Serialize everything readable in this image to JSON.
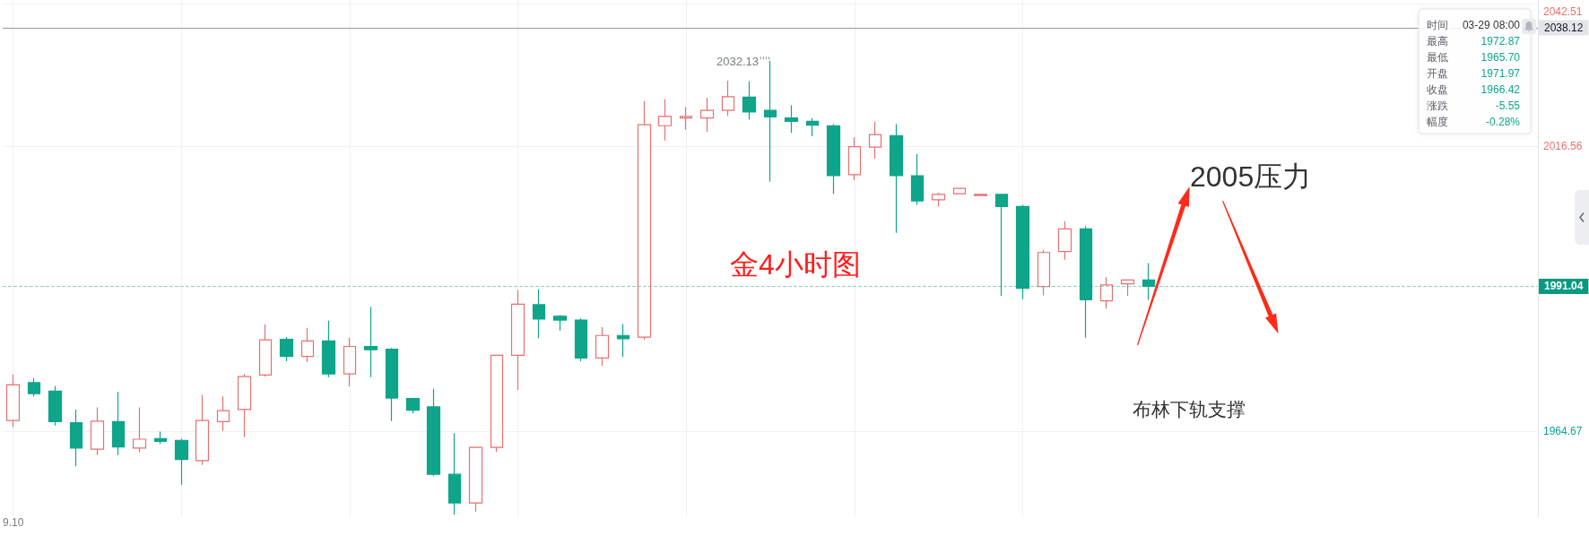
{
  "chart_data": {
    "type": "candlestick",
    "title": "金4小时图",
    "categories": [
      "9.10",
      null,
      null,
      null,
      null,
      null,
      null,
      null,
      null,
      null,
      null,
      null,
      null,
      null,
      null,
      null,
      null,
      null,
      null,
      null,
      null,
      null,
      null,
      null,
      null,
      null,
      null,
      null,
      null,
      null,
      null,
      null,
      null,
      null,
      null,
      null,
      null,
      null,
      null,
      null,
      null,
      null,
      null,
      null,
      null,
      null,
      null,
      null,
      null,
      null,
      null,
      null,
      null,
      null,
      null,
      null,
      null,
      null,
      null,
      null,
      null,
      null,
      null,
      null,
      null,
      null,
      null,
      null,
      null,
      null,
      null,
      null,
      null
    ],
    "ohlc": [
      [
        1966.6,
        1975.0,
        1965.4,
        1973.1
      ],
      [
        1973.5,
        1974.3,
        1971.0,
        1971.5
      ],
      [
        1971.97,
        1972.87,
        1965.7,
        1966.42
      ],
      [
        1966.2,
        1968.6,
        1958.3,
        1961.6
      ],
      [
        1961.4,
        1969.0,
        1960.3,
        1966.5
      ],
      [
        1966.4,
        1971.8,
        1960.3,
        1961.8
      ],
      [
        1961.6,
        1969.0,
        1960.8,
        1963.2
      ],
      [
        1963.3,
        1964.6,
        1962.3,
        1962.8
      ],
      [
        1963.0,
        1963.3,
        1954.9,
        1959.5
      ],
      [
        1959.3,
        1971.3,
        1958.5,
        1966.6
      ],
      [
        1966.4,
        1971.0,
        1964.7,
        1968.4
      ],
      [
        1968.6,
        1975.1,
        1963.6,
        1974.6
      ],
      [
        1974.9,
        1984.1,
        1974.6,
        1981.3
      ],
      [
        1981.4,
        1981.8,
        1977.4,
        1978.3
      ],
      [
        1978.3,
        1983.5,
        1977.3,
        1981.1
      ],
      [
        1981.1,
        1984.8,
        1974.5,
        1975.1
      ],
      [
        1975.1,
        1981.7,
        1972.8,
        1980.1
      ],
      [
        1980.1,
        1987.3,
        1974.5,
        1979.5
      ],
      [
        1979.6,
        1979.8,
        1966.5,
        1970.7
      ],
      [
        1970.6,
        1970.7,
        1967.9,
        1968.5
      ],
      [
        1969.1,
        1972.4,
        1956.5,
        1956.8
      ],
      [
        1956.8,
        1964.3,
        1949.5,
        1951.6
      ],
      [
        1951.6,
        1961.8,
        1950.0,
        1961.7
      ],
      [
        1961.7,
        1978.6,
        1960.9,
        1978.5
      ],
      [
        1978.5,
        1990.4,
        1972.2,
        1987.8
      ],
      [
        1987.7,
        1990.5,
        1981.6,
        1985.1
      ],
      [
        1985.6,
        1985.8,
        1983.0,
        1984.9
      ],
      [
        1984.9,
        1985.2,
        1977.4,
        1978.0
      ],
      [
        1978.0,
        1983.6,
        1976.6,
        1982.1
      ],
      [
        1982.1,
        1984.2,
        1978.2,
        1981.5
      ],
      [
        1981.8,
        2024.8,
        1981.3,
        2020.5
      ],
      [
        2020.3,
        2025.1,
        2017.6,
        2022.0
      ],
      [
        2021.7,
        2023.7,
        2019.6,
        2022.0
      ],
      [
        2021.7,
        2025.4,
        2019.2,
        2023.1
      ],
      [
        2023.1,
        2028.5,
        2022.1,
        2025.6
      ],
      [
        2025.5,
        2028.4,
        2021.4,
        2022.8
      ],
      [
        2023.1,
        2032.13,
        2010.1,
        2021.9
      ],
      [
        2021.7,
        2024.0,
        2019.0,
        2021.1
      ],
      [
        2021.1,
        2021.7,
        2018.4,
        2020.4
      ],
      [
        2020.3,
        2020.6,
        2007.9,
        2011.2
      ],
      [
        2011.4,
        2018.2,
        2010.4,
        2016.5
      ],
      [
        2016.4,
        2021.0,
        2014.3,
        2018.7
      ],
      [
        2018.5,
        2020.6,
        2000.8,
        2011.2
      ],
      [
        2011.2,
        2015.1,
        2005.9,
        2006.6
      ],
      [
        2006.8,
        2008.1,
        2005.6,
        2007.8
      ],
      [
        2007.9,
        2009.0,
        2007.9,
        2008.9
      ],
      [
        2007.6,
        2007.9,
        2007.5,
        2007.8
      ],
      [
        2007.8,
        2007.9,
        1989.3,
        2005.6
      ],
      [
        2005.6,
        2005.9,
        1988.7,
        1990.7
      ],
      [
        1991.0,
        1997.7,
        1989.4,
        1997.2
      ],
      [
        1997.4,
        2002.9,
        1995.9,
        2001.5
      ],
      [
        2001.5,
        2002.0,
        1981.7,
        1988.6
      ],
      [
        1988.4,
        1992.7,
        1987.0,
        1991.3
      ],
      [
        1991.5,
        1992.3,
        1989.3,
        1992.2
      ],
      [
        1992.2,
        1995.3,
        1988.6,
        1991.04
      ],
      null,
      null,
      null,
      null,
      null,
      null,
      null,
      null,
      null,
      null,
      null,
      null,
      null,
      null,
      null,
      null,
      null,
      null
    ],
    "colors": [
      "#e8706f",
      "#0ea58a",
      "#0ea58a",
      "#0ea58a",
      "#e8706f",
      "#0ea58a",
      "#e8706f",
      "#0ea58a",
      "#0ea58a",
      "#e8706f",
      "#e8706f",
      "#e8706f",
      "#e8706f",
      "#0ea58a",
      "#e8706f",
      "#0ea58a",
      "#e8706f",
      "#0ea58a",
      "#0ea58a",
      "#0ea58a",
      "#0ea58a",
      "#0ea58a",
      "#e8706f",
      "#e8706f",
      "#e8706f",
      "#0ea58a",
      "#0ea58a",
      "#0ea58a",
      "#e8706f",
      "#0ea58a",
      "#e8706f",
      "#e8706f",
      "#e8706f",
      "#e8706f",
      "#e8706f",
      "#0ea58a",
      "#0ea58a",
      "#0ea58a",
      "#0ea58a",
      "#0ea58a",
      "#e8706f",
      "#e8706f",
      "#0ea58a",
      "#0ea58a",
      "#e8706f",
      "#e8706f",
      "#e8706f",
      "#0ea58a",
      "#0ea58a",
      "#e8706f",
      "#e8706f",
      "#0ea58a",
      "#e8706f",
      "#e8706f",
      "#0ea58a",
      null,
      null,
      null,
      null,
      null,
      null,
      null,
      null,
      null,
      null,
      null,
      null,
      null,
      null,
      null,
      null,
      null,
      null
    ],
    "ylim": [
      1949,
      2043.2
    ],
    "yticks": [
      1964.67,
      2016.56,
      2042.51
    ],
    "grid": true,
    "ref_lines": [
      {
        "axis": "y",
        "value": 2038.12,
        "label": "2038.12",
        "color": "#9598a1",
        "line_style": "solid"
      },
      {
        "axis": "y",
        "value": 1991.04,
        "label": "1991.04",
        "color": "#089981",
        "line_style": "dashed"
      }
    ],
    "annotations": [
      "2005压力",
      "布林下轨支撑",
      "2032.13",
      "时间",
      "03-29 08:00",
      "最高",
      "1972.87",
      "最低",
      "1965.70",
      "开盘",
      "1971.97",
      "收盘",
      "1966.42",
      "涨跌",
      "-5.55",
      "幅度",
      "-0.28%"
    ]
  }
}
